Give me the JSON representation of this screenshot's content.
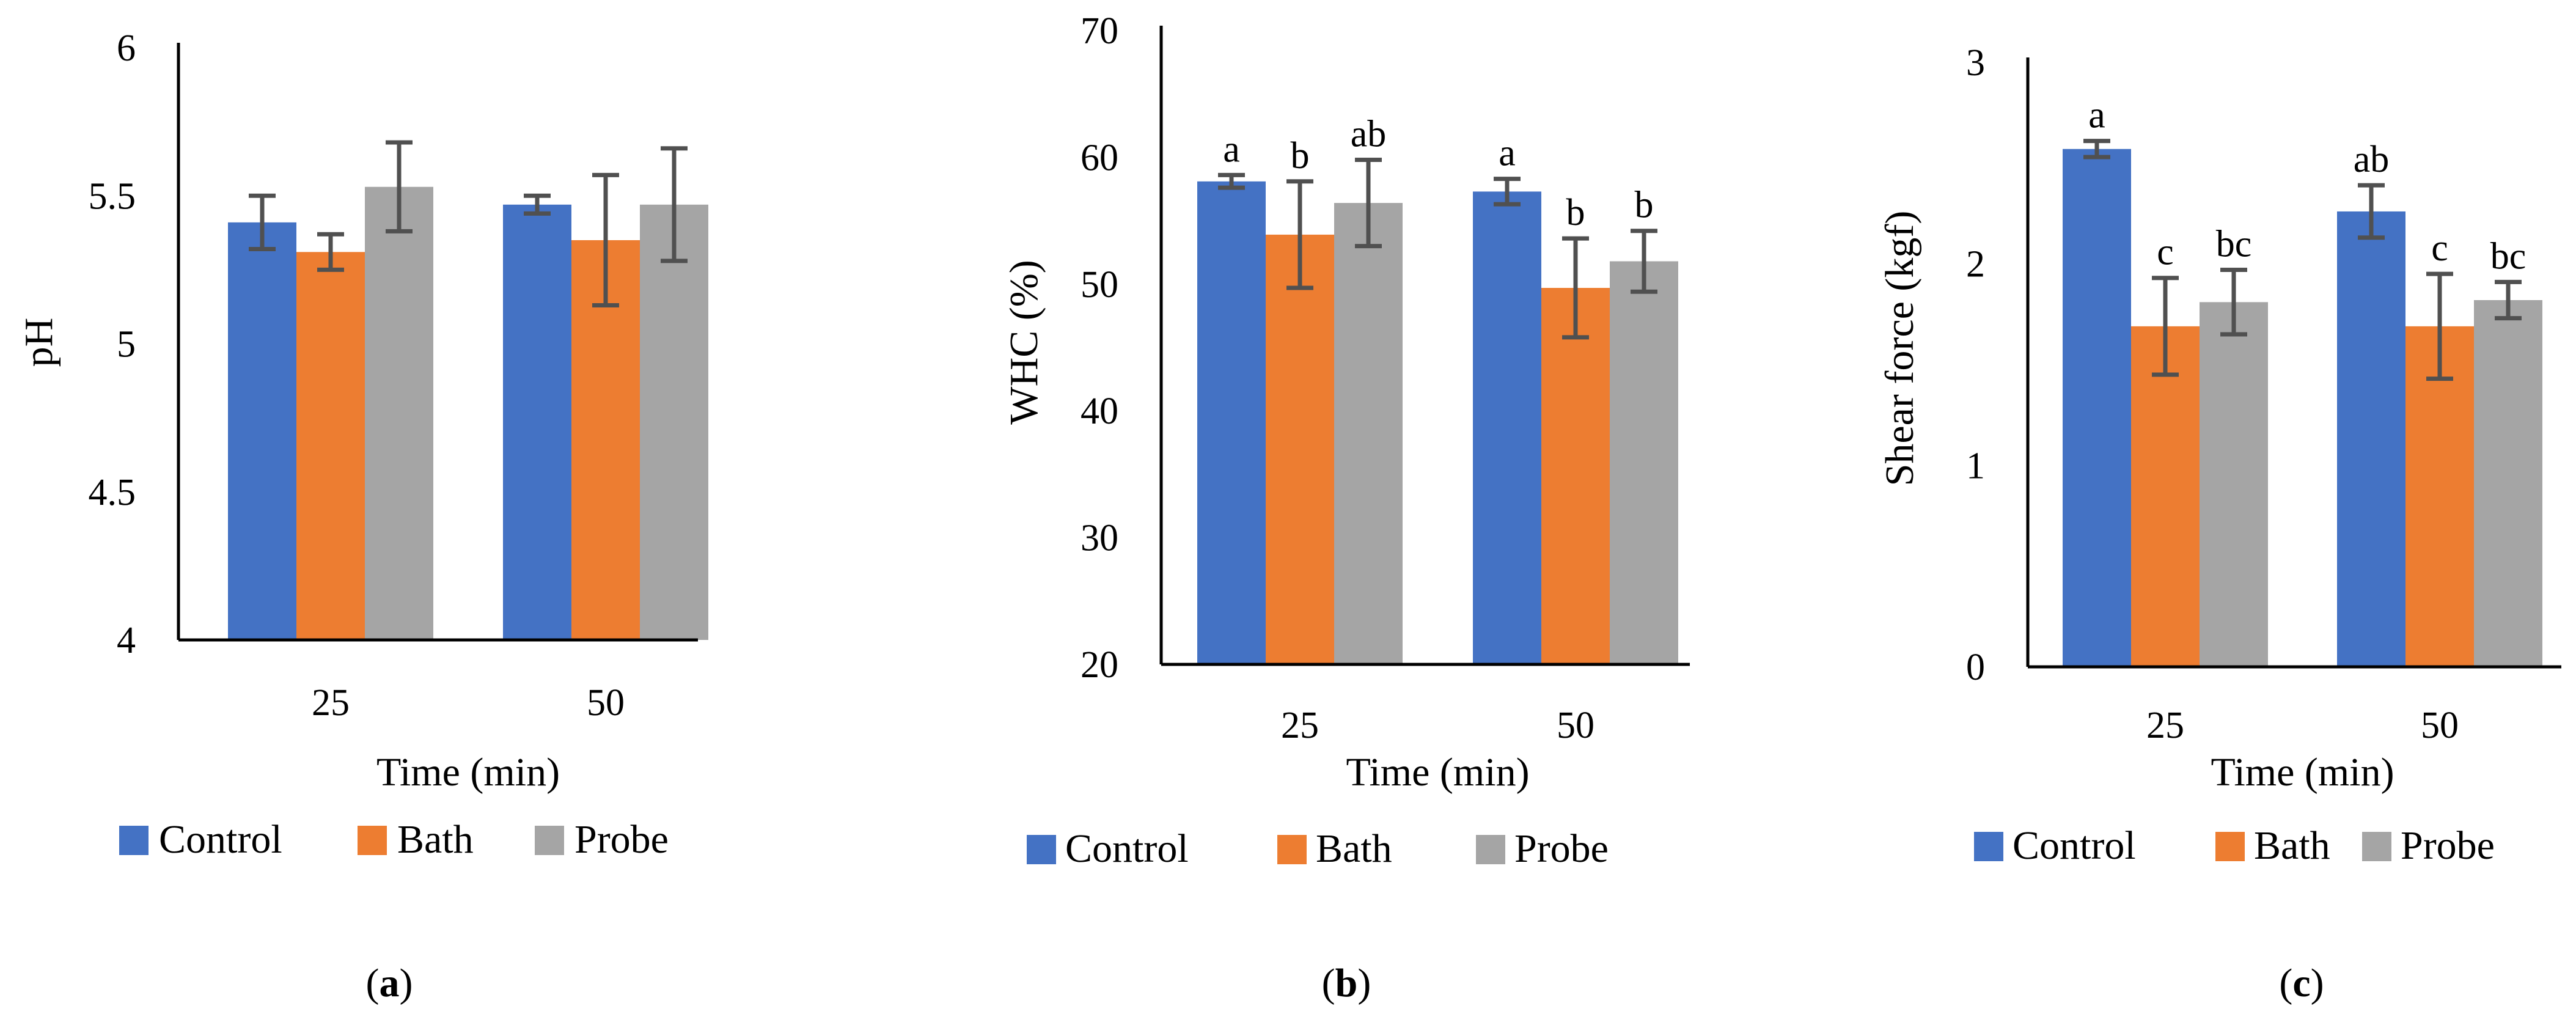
{
  "chart_data": [
    {
      "type": "bar",
      "panel": "a",
      "categories": [
        "25",
        "50"
      ],
      "series": [
        {
          "name": "Control",
          "values": [
            5.41,
            5.47
          ],
          "errors": [
            0.09,
            0.03
          ],
          "color": "#4472C4"
        },
        {
          "name": "Bath",
          "values": [
            5.31,
            5.35
          ],
          "errors": [
            0.06,
            0.22
          ],
          "color": "#ED7D31"
        },
        {
          "name": "Probe",
          "values": [
            5.53,
            5.47
          ],
          "errors": [
            0.15,
            0.19
          ],
          "color": "#A5A5A5"
        }
      ],
      "letters": null,
      "xlabel": "Time (min)",
      "ylabel": "pH",
      "ylim": [
        4,
        6
      ],
      "yticks": [
        "4",
        "4.5",
        "5",
        "5.5",
        "6"
      ],
      "legend": [
        "Control",
        "Bath",
        "Probe"
      ],
      "legend_position": "bottom",
      "label": "a"
    },
    {
      "type": "bar",
      "panel": "b",
      "categories": [
        "25",
        "50"
      ],
      "series": [
        {
          "name": "Control",
          "values": [
            58.1,
            57.3
          ],
          "errors": [
            0.5,
            1.0
          ],
          "color": "#4472C4"
        },
        {
          "name": "Bath",
          "values": [
            53.9,
            49.7
          ],
          "errors": [
            4.2,
            3.9
          ],
          "color": "#ED7D31"
        },
        {
          "name": "Probe",
          "values": [
            56.4,
            51.8
          ],
          "errors": [
            3.4,
            2.4
          ],
          "color": "#A5A5A5"
        }
      ],
      "letters": [
        [
          "a",
          "b",
          "ab"
        ],
        [
          "a",
          "b",
          "b"
        ]
      ],
      "xlabel": "Time (min)",
      "ylabel": "WHC (%)",
      "ylim": [
        20,
        70
      ],
      "yticks": [
        "20",
        "30",
        "40",
        "50",
        "60",
        "70"
      ],
      "legend": [
        "Control",
        "Bath",
        "Probe"
      ],
      "legend_position": "bottom",
      "label": "b"
    },
    {
      "type": "bar",
      "panel": "c",
      "categories": [
        "25",
        "50"
      ],
      "series": [
        {
          "name": "Control",
          "values": [
            2.57,
            2.26
          ],
          "errors": [
            0.04,
            0.13
          ],
          "color": "#4472C4"
        },
        {
          "name": "Bath",
          "values": [
            1.69,
            1.69
          ],
          "errors": [
            0.24,
            0.26
          ],
          "color": "#ED7D31"
        },
        {
          "name": "Probe",
          "values": [
            1.81,
            1.82
          ],
          "errors": [
            0.16,
            0.09
          ],
          "color": "#A5A5A5"
        }
      ],
      "letters": [
        [
          "a",
          "c",
          "bc"
        ],
        [
          "ab",
          "c",
          "bc"
        ]
      ],
      "xlabel": "Time (min)",
      "ylabel": "Shear force (kgf)",
      "ylim": [
        0,
        3
      ],
      "yticks": [
        "0",
        "1",
        "2",
        "3"
      ],
      "legend": [
        "Control",
        "Bath",
        "Probe"
      ],
      "legend_position": "bottom",
      "label": "c"
    }
  ]
}
